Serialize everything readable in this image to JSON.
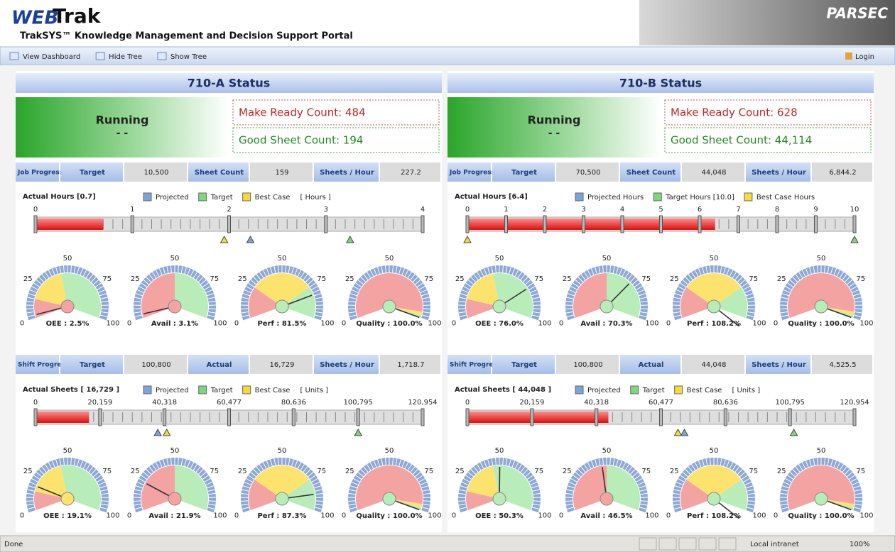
{
  "header": {
    "logo_web": "WEB",
    "logo_trak": "Trak",
    "subtitle": "TrakSYS™ Knowledge Management and Decision Support Portal",
    "brand": "PARSEC"
  },
  "toolbar": {
    "items": [
      "View Dashboard",
      "Hide Tree",
      "Show Tree"
    ],
    "login": "Login"
  },
  "gauge_ticks": [
    0,
    25,
    50,
    75,
    100
  ],
  "gauge_zones": [
    [
      {
        "from": 0,
        "to": 15,
        "color": "#f4a3a3"
      },
      {
        "from": 15,
        "to": 45,
        "color": "#fbe36e"
      },
      {
        "from": 45,
        "to": 100,
        "color": "#b8ecb8"
      }
    ],
    [
      {
        "from": 0,
        "to": 50,
        "color": "#f4a3a3"
      },
      {
        "from": 50,
        "to": 100,
        "color": "#b8ecb8"
      }
    ],
    [
      {
        "from": 0,
        "to": 25,
        "color": "#f4a3a3"
      },
      {
        "from": 25,
        "to": 75,
        "color": "#fbe36e"
      },
      {
        "from": 75,
        "to": 100,
        "color": "#b8ecb8"
      }
    ],
    [
      {
        "from": 0,
        "to": 95,
        "color": "#f4a3a3"
      },
      {
        "from": 95,
        "to": 98,
        "color": "#fbe36e"
      },
      {
        "from": 98,
        "to": 100,
        "color": "#b8ecb8"
      }
    ]
  ],
  "panels": [
    {
      "title": "710-A Status",
      "state": "Running",
      "state_detail": "- -",
      "make_ready": "Make Ready Count: 484",
      "good_sheets": "Good Sheet Count: 194",
      "job": {
        "row": [
          "Job Progress",
          "Target",
          "10,500",
          "Sheet Count",
          "159",
          "Sheets / Hour",
          "227.2"
        ],
        "bar": {
          "label": "Actual Hours [0.7]",
          "value": 0.7,
          "xlim": [
            0,
            4
          ],
          "ticks": [
            0,
            1,
            2,
            3,
            4
          ],
          "unit": "[ Hours ]",
          "legend": [
            {
              "name": "Projected",
              "color": "#7fa3d6",
              "value": 2.22
            },
            {
              "name": "Target",
              "color": "#7fd67f",
              "value": 3.25
            },
            {
              "name": "Best Case",
              "color": "#f3dc3c",
              "value": 1.95
            }
          ]
        },
        "gauges": [
          {
            "label": "OEE : 2.5%",
            "value": 2.5
          },
          {
            "label": "Avail : 3.1%",
            "value": 3.1
          },
          {
            "label": "Perf : 81.5%",
            "value": 81.5
          },
          {
            "label": "Quality : 100.0%",
            "value": 100.0
          }
        ]
      },
      "shift": {
        "row": [
          "Shift Progress",
          "Target",
          "100,800",
          "Actual",
          "16,729",
          "Sheets / Hour",
          "1,718.7"
        ],
        "bar": {
          "label": "Actual Sheets [ 16,729 ]",
          "value": 16729,
          "xlim": [
            0,
            120954
          ],
          "ticks": [
            0,
            {
              "value": 20159,
              "label": "20,159"
            },
            {
              "value": 40318,
              "label": "40,318"
            },
            {
              "value": 60477,
              "label": "60,477"
            },
            {
              "value": 80636,
              "label": "80,636"
            },
            {
              "value": 100795,
              "label": "100,795"
            },
            {
              "value": 120954,
              "label": "120,954"
            }
          ],
          "unit": "[ Units ]",
          "legend": [
            {
              "name": "Projected",
              "color": "#7fa3d6",
              "value": 38200
            },
            {
              "name": "Target",
              "color": "#7fd67f",
              "value": 100795
            },
            {
              "name": "Best Case",
              "color": "#f3dc3c",
              "value": 41000
            }
          ]
        },
        "gauges": [
          {
            "label": "OEE : 19.1%",
            "value": 19.1
          },
          {
            "label": "Avail : 21.9%",
            "value": 21.9
          },
          {
            "label": "Perf : 87.3%",
            "value": 87.3
          },
          {
            "label": "Quality : 100.0%",
            "value": 100.0
          }
        ]
      }
    },
    {
      "title": "710-B Status",
      "state": "Running",
      "state_detail": "- -",
      "make_ready": "Make Ready Count: 628",
      "good_sheets": "Good Sheet Count: 44,114",
      "job": {
        "row": [
          "Job Progress",
          "Target",
          "70,500",
          "Sheet Count",
          "44,048",
          "Sheets / Hour",
          "6,844.2"
        ],
        "bar": {
          "label": "Actual Hours [6.4]",
          "value": 6.4,
          "xlim": [
            0,
            10
          ],
          "ticks": [
            0,
            1,
            2,
            3,
            4,
            5,
            6,
            7,
            8,
            9,
            10
          ],
          "unit": null,
          "legend": [
            {
              "name": "Projected Hours",
              "color": "#7fa3d6",
              "value": null
            },
            {
              "name": "Target Hours [10.0]",
              "color": "#7fd67f",
              "value": 10.0
            },
            {
              "name": "Best Case Hours",
              "color": "#f3dc3c",
              "value": 0
            }
          ]
        },
        "gauges": [
          {
            "label": "OEE : 76.0%",
            "value": 76.0
          },
          {
            "label": "Avail : 70.3%",
            "value": 70.3
          },
          {
            "label": "Perf : 108.2%",
            "value": 108.2
          },
          {
            "label": "Quality : 100.0%",
            "value": 100.0
          }
        ]
      },
      "shift": {
        "row": [
          "Shift Progress",
          "Target",
          "100,800",
          "Actual",
          "44,048",
          "Sheets / Hour",
          "4,525.5"
        ],
        "bar": {
          "label": "Actual Sheets [ 44,048 ]",
          "value": 44048,
          "xlim": [
            0,
            120954
          ],
          "ticks": [
            0,
            {
              "value": 20159,
              "label": "20,159"
            },
            {
              "value": 40318,
              "label": "40,318"
            },
            {
              "value": 60477,
              "label": "60,477"
            },
            {
              "value": 80636,
              "label": "80,636"
            },
            {
              "value": 100795,
              "label": "100,795"
            },
            {
              "value": 120954,
              "label": "120,954"
            }
          ],
          "unit": "[ Units ]",
          "legend": [
            {
              "name": "Projected",
              "color": "#7fa3d6",
              "value": 67800
            },
            {
              "name": "Target",
              "color": "#7fd67f",
              "value": 102000
            },
            {
              "name": "Best Case",
              "color": "#f3dc3c",
              "value": 65800
            }
          ]
        },
        "gauges": [
          {
            "label": "OEE : 50.3%",
            "value": 50.3
          },
          {
            "label": "Avail : 46.5%",
            "value": 46.5
          },
          {
            "label": "Perf : 108.2%",
            "value": 108.2
          },
          {
            "label": "Quality : 100.0%",
            "value": 100.0
          }
        ]
      }
    }
  ],
  "status_bar": {
    "left": "Done",
    "zone": "Local intranet",
    "zoom": "100%"
  }
}
